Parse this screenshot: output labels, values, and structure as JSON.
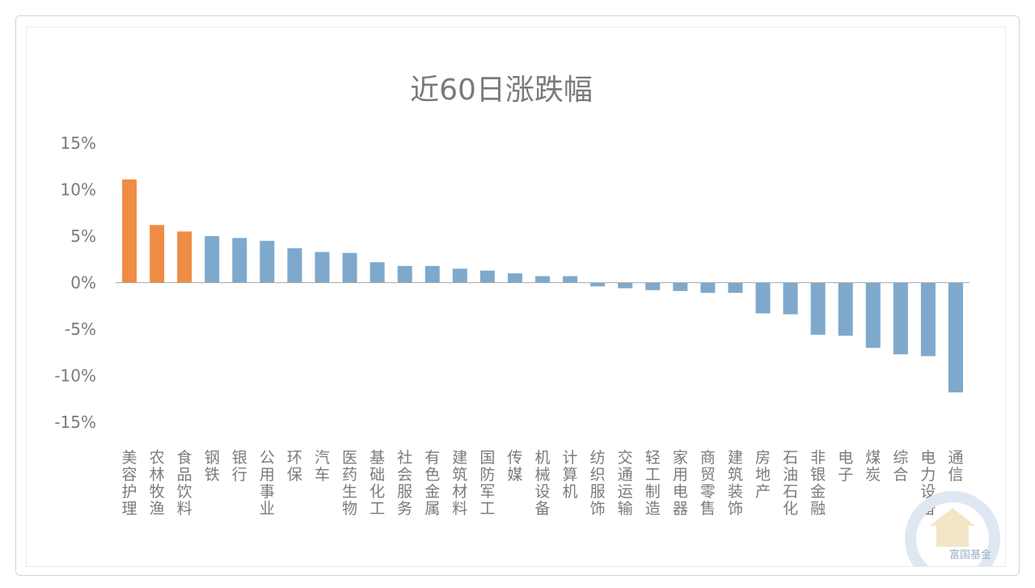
{
  "chart_data": {
    "type": "bar",
    "title": "近60日涨跌幅",
    "xlabel": "",
    "ylabel": "",
    "ylim": [
      -15,
      15
    ],
    "yticks": [
      15,
      10,
      5,
      0,
      -5,
      -10,
      -15
    ],
    "ytick_labels": [
      "15%",
      "10%",
      "5%",
      "0%",
      "-5%",
      "-10%",
      "-15%"
    ],
    "grid": false,
    "legend": "none",
    "colors": {
      "highlight": "#ef8c45",
      "default": "#7ea9cc",
      "axis": "#aaaaaa"
    },
    "categories": [
      "美容护理",
      "农林牧渔",
      "食品饮料",
      "钢铁",
      "银行",
      "公用事业",
      "环保",
      "汽车",
      "医药生物",
      "基础化工",
      "社会服务",
      "有色金属",
      "建筑材料",
      "国防军工",
      "传媒",
      "机械设备",
      "计算机",
      "纺织服饰",
      "交通运输",
      "轻工制造",
      "家用电器",
      "商贸零售",
      "建筑装饰",
      "房地产",
      "石油石化",
      "非银金融",
      "电子",
      "煤炭",
      "综合",
      "电力设备",
      "通信"
    ],
    "values": [
      11.1,
      6.2,
      5.5,
      5.0,
      4.8,
      4.5,
      3.7,
      3.3,
      3.2,
      2.2,
      1.8,
      1.8,
      1.5,
      1.3,
      1.0,
      0.7,
      0.7,
      -0.4,
      -0.6,
      -0.8,
      -0.9,
      -1.1,
      -1.1,
      -3.3,
      -3.4,
      -5.6,
      -5.7,
      -7.0,
      -7.7,
      -7.9,
      -11.8
    ],
    "highlight_indices": [
      0,
      1,
      2
    ]
  },
  "watermark": {
    "text": "富国基金",
    "icon": "fullgoal-logo-icon"
  }
}
